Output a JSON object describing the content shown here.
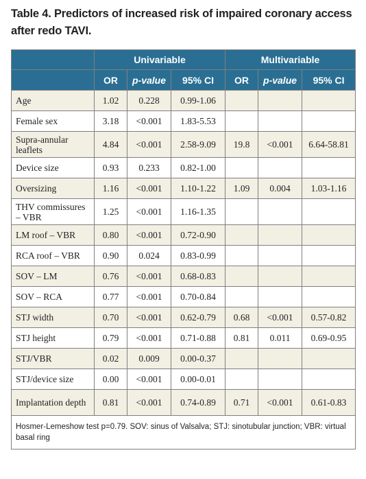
{
  "title": "Table 4. Predictors of increased risk of impaired coronary access after redo TAVI.",
  "groups": [
    "Univariable",
    "Multivariable"
  ],
  "columns": [
    "OR",
    "p-value",
    "95% CI",
    "OR",
    "p-value",
    "95% CI"
  ],
  "rows": [
    {
      "label": "Age",
      "u_or": "1.02",
      "u_p": "0.228",
      "u_ci": "0.99-1.06",
      "m_or": "",
      "m_p": "",
      "m_ci": ""
    },
    {
      "label": "Female sex",
      "u_or": "3.18",
      "u_p": "<0.001",
      "u_ci": "1.83-5.53",
      "m_or": "",
      "m_p": "",
      "m_ci": ""
    },
    {
      "label": "Supra-annular leaflets",
      "u_or": "4.84",
      "u_p": "<0.001",
      "u_ci": "2.58-9.09",
      "m_or": "19.8",
      "m_p": "<0.001",
      "m_ci": "6.64-58.81"
    },
    {
      "label": "Device size",
      "u_or": "0.93",
      "u_p": "0.233",
      "u_ci": "0.82-1.00",
      "m_or": "",
      "m_p": "",
      "m_ci": ""
    },
    {
      "label": "Oversizing",
      "u_or": "1.16",
      "u_p": "<0.001",
      "u_ci": "1.10-1.22",
      "m_or": "1.09",
      "m_p": "0.004",
      "m_ci": "1.03-1.16"
    },
    {
      "label": "THV commissures – VBR",
      "u_or": "1.25",
      "u_p": "<0.001",
      "u_ci": "1.16-1.35",
      "m_or": "",
      "m_p": "",
      "m_ci": ""
    },
    {
      "label": "LM roof – VBR",
      "u_or": "0.80",
      "u_p": "<0.001",
      "u_ci": "0.72-0.90",
      "m_or": "",
      "m_p": "",
      "m_ci": ""
    },
    {
      "label": "RCA roof – VBR",
      "u_or": "0.90",
      "u_p": "0.024",
      "u_ci": "0.83-0.99",
      "m_or": "",
      "m_p": "",
      "m_ci": ""
    },
    {
      "label": "SOV – LM",
      "u_or": "0.76",
      "u_p": "<0.001",
      "u_ci": "0.68-0.83",
      "m_or": "",
      "m_p": "",
      "m_ci": ""
    },
    {
      "label": "SOV – RCA",
      "u_or": "0.77",
      "u_p": "<0.001",
      "u_ci": "0.70-0.84",
      "m_or": "",
      "m_p": "",
      "m_ci": ""
    },
    {
      "label": "STJ width",
      "u_or": "0.70",
      "u_p": "<0.001",
      "u_ci": "0.62-0.79",
      "m_or": "0.68",
      "m_p": "<0.001",
      "m_ci": "0.57-0.82"
    },
    {
      "label": "STJ height",
      "u_or": "0.79",
      "u_p": "<0.001",
      "u_ci": "0.71-0.88",
      "m_or": "0.81",
      "m_p": "0.011",
      "m_ci": "0.69-0.95"
    },
    {
      "label": "STJ/VBR",
      "u_or": "0.02",
      "u_p": "0.009",
      "u_ci": "0.00-0.37",
      "m_or": "",
      "m_p": "",
      "m_ci": ""
    },
    {
      "label": "STJ/device size",
      "u_or": "0.00",
      "u_p": "<0.001",
      "u_ci": "0.00-0.01",
      "m_or": "",
      "m_p": "",
      "m_ci": ""
    },
    {
      "label": "Implantation depth",
      "u_or": "0.81",
      "u_p": "<0.001",
      "u_ci": "0.74-0.89",
      "m_or": "0.71",
      "m_p": "<0.001",
      "m_ci": "0.61-0.83"
    }
  ],
  "footnote": "Hosmer-Lemeshow test p=0.79. SOV: sinus of Valsalva; STJ: sinotubular junction; VBR: virtual basal ring",
  "colors": {
    "header_bg": "#2a6f93",
    "row_shade": "#f2efe3",
    "border": "#7f7f7f"
  }
}
